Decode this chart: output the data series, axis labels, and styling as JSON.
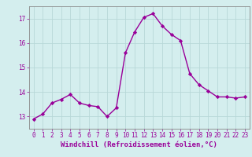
{
  "x": [
    0,
    1,
    2,
    3,
    4,
    5,
    6,
    7,
    8,
    9,
    10,
    11,
    12,
    13,
    14,
    15,
    16,
    17,
    18,
    19,
    20,
    21,
    22,
    23
  ],
  "y": [
    12.9,
    13.1,
    13.55,
    13.7,
    13.9,
    13.55,
    13.45,
    13.4,
    13.0,
    13.35,
    15.6,
    16.45,
    17.05,
    17.2,
    16.7,
    16.35,
    16.1,
    14.75,
    14.3,
    14.05,
    13.8,
    13.8,
    13.75,
    13.8
  ],
  "line_color": "#990099",
  "marker": "D",
  "marker_size": 2.2,
  "line_width": 1.0,
  "bg_color": "#d4eeee",
  "grid_color": "#b8d8d8",
  "xlabel": "Windchill (Refroidissement éolien,°C)",
  "ylim": [
    12.5,
    17.5
  ],
  "xlim": [
    -0.5,
    23.5
  ],
  "yticks": [
    13,
    14,
    15,
    16,
    17
  ],
  "xticks": [
    0,
    1,
    2,
    3,
    4,
    5,
    6,
    7,
    8,
    9,
    10,
    11,
    12,
    13,
    14,
    15,
    16,
    17,
    18,
    19,
    20,
    21,
    22,
    23
  ],
  "tick_label_size": 5.5,
  "xlabel_size": 6.5,
  "tick_color": "#990099",
  "label_color": "#990099",
  "spine_color": "#888888"
}
